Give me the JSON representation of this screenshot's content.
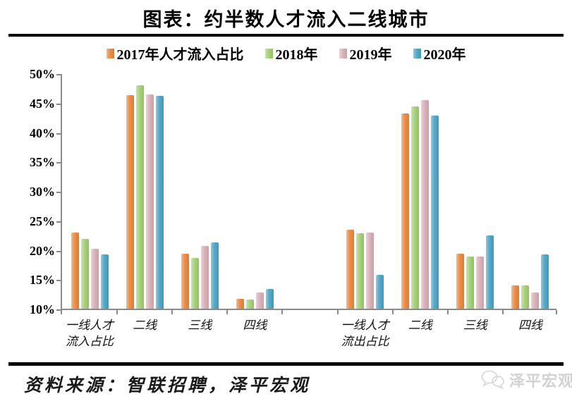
{
  "title": "图表：约半数人才流入二线城市",
  "source_note": "资料来源：智联招聘，泽平宏观",
  "watermark": "泽平宏观",
  "colors": {
    "s2017": "#EF8638",
    "s2018": "#A1D06F",
    "s2019": "#DBAEB6",
    "s2020": "#46A4C6",
    "axis": "#8a8a8a",
    "rule": "#000000",
    "watermark_gray": "#d2d2d2"
  },
  "chart_data": {
    "type": "bar",
    "title": "图表：约半数人才流入二线城市",
    "categories": [
      "一线人才\n流入占比",
      "二线",
      "三线",
      "四线",
      "",
      "一线人才\n流出占比",
      "二线",
      "三线",
      "四线"
    ],
    "series": [
      {
        "name": "2017年人才流入占比",
        "color": "#EF8638",
        "values": [
          22.9,
          46.3,
          19.3,
          11.7,
          null,
          23.4,
          43.2,
          19.4,
          14.0
        ]
      },
      {
        "name": "2018年",
        "color": "#A1D06F",
        "values": [
          21.8,
          48.0,
          18.6,
          11.6,
          null,
          22.8,
          44.4,
          18.9,
          13.9
        ]
      },
      {
        "name": "2019年",
        "color": "#DBAEB6",
        "values": [
          20.2,
          46.4,
          20.7,
          12.7,
          null,
          22.9,
          45.4,
          18.9,
          12.8
        ]
      },
      {
        "name": "2020年",
        "color": "#46A4C6",
        "values": [
          19.2,
          46.2,
          21.3,
          13.4,
          null,
          15.7,
          42.8,
          22.4,
          19.2
        ]
      }
    ],
    "ylabel": "",
    "xlabel": "",
    "ylim": [
      10,
      50
    ],
    "ytick_step": 5,
    "yticks": [
      "50%",
      "45%",
      "40%",
      "35%",
      "30%",
      "25%",
      "20%",
      "15%",
      "10%"
    ],
    "grid": false,
    "legend_position": "top",
    "baseline_value": 10
  }
}
